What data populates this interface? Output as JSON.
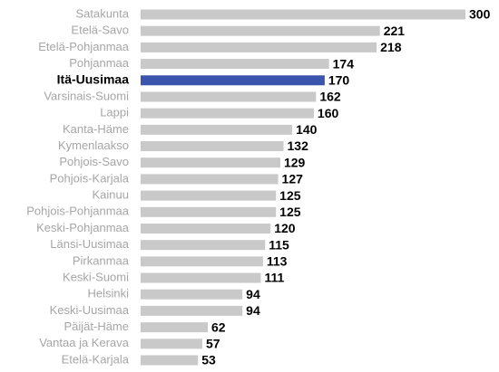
{
  "chart_data": {
    "type": "barh",
    "categories": [
      "Satakunta",
      "Etelä-Savo",
      "Etelä-Pohjanmaa",
      "Pohjanmaa",
      "Itä-Uusimaa",
      "Varsinais-Suomi",
      "Lappi",
      "Kanta-Häme",
      "Kymenlaakso",
      "Pohjois-Savo",
      "Pohjois-Karjala",
      "Kainuu",
      "Pohjois-Pohjanmaa",
      "Keski-Pohjanmaa",
      "Länsi-Uusimaa",
      "Pirkanmaa",
      "Keski-Suomi",
      "Helsinki",
      "Keski-Uusimaa",
      "Päijät-Häme",
      "Vantaa ja Kerava",
      "Etelä-Karjala"
    ],
    "values": [
      300,
      221,
      218,
      174,
      170,
      162,
      160,
      140,
      132,
      129,
      127,
      125,
      125,
      120,
      115,
      113,
      111,
      94,
      94,
      62,
      57,
      53
    ],
    "color": "#c9c9c9",
    "colors": [
      "#c9c9c9",
      "#c9c9c9",
      "#c9c9c9",
      "#c9c9c9",
      "#3b55ae",
      "#c9c9c9",
      "#c9c9c9",
      "#c9c9c9",
      "#c9c9c9",
      "#c9c9c9",
      "#c9c9c9",
      "#c9c9c9",
      "#c9c9c9",
      "#c9c9c9",
      "#c9c9c9",
      "#c9c9c9",
      "#c9c9c9",
      "#c9c9c9",
      "#c9c9c9",
      "#c9c9c9",
      "#c9c9c9",
      "#c9c9c9"
    ]
  }
}
